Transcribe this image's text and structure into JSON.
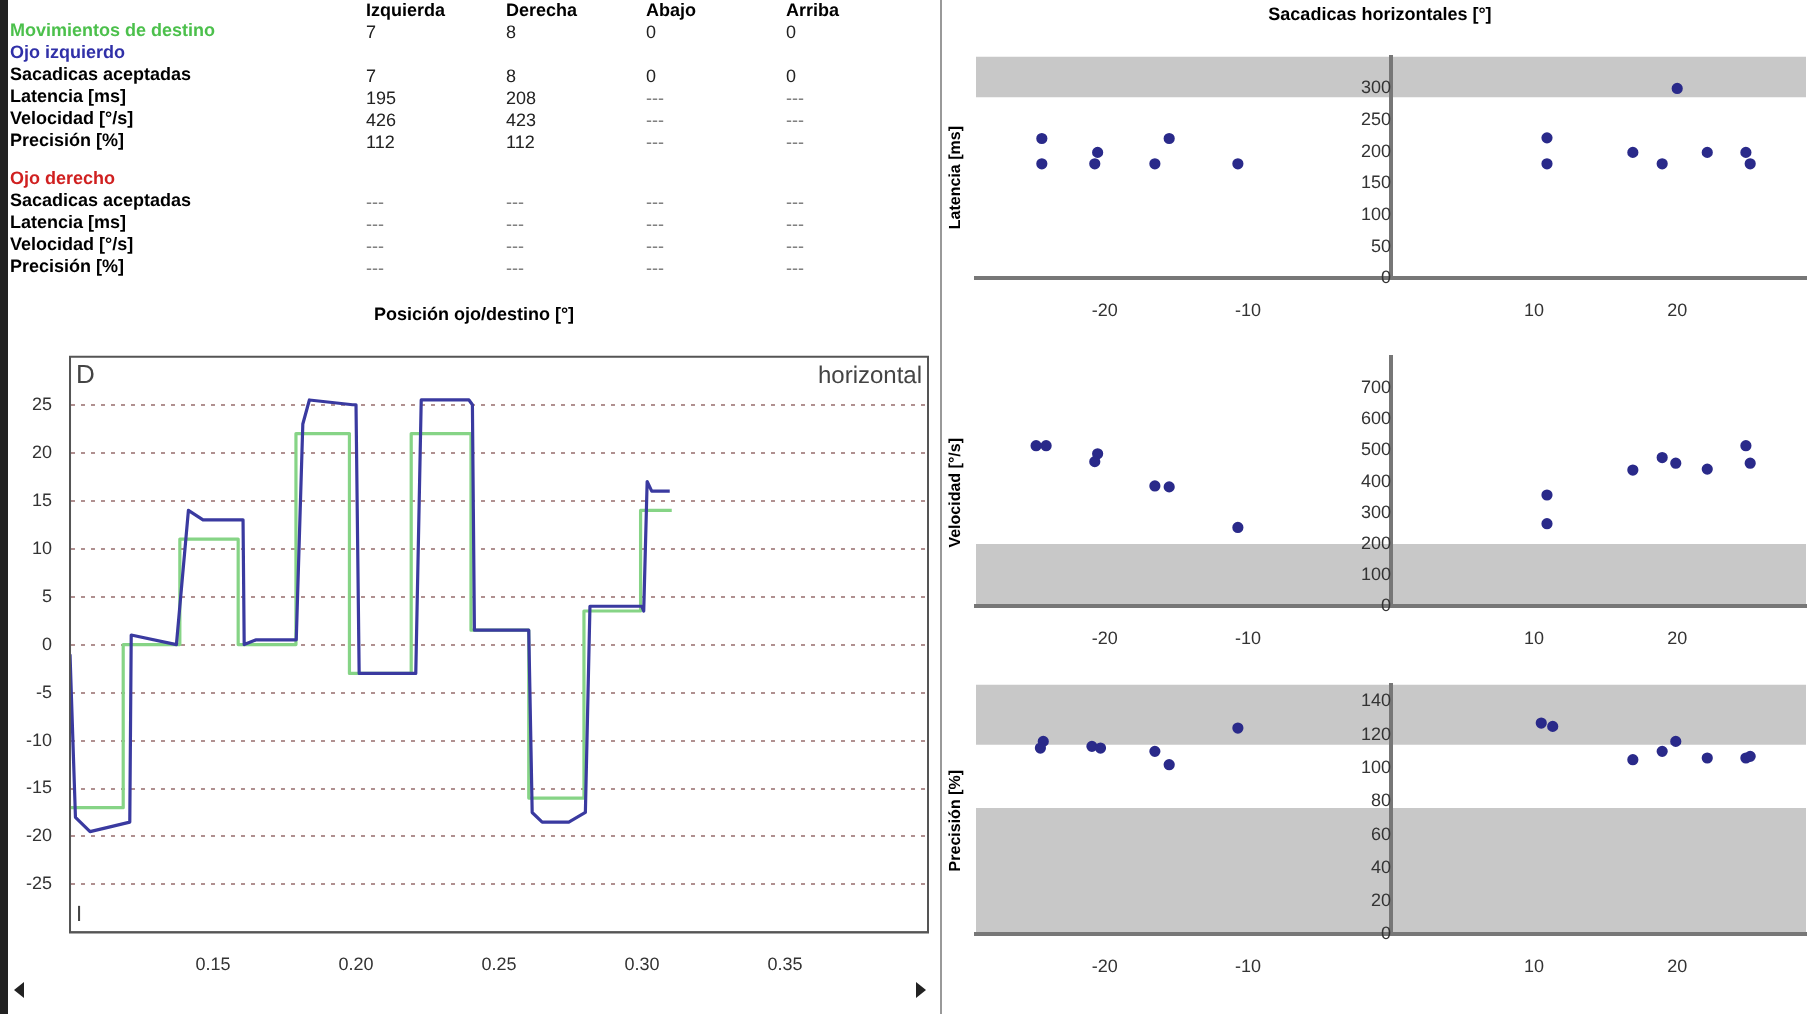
{
  "chart_data": [
    {
      "type": "other",
      "categories": [
        "Izquierda",
        "Derecha",
        "Abajo",
        "Arriba"
      ],
      "series": [
        {
          "name": "Movimientos de destino",
          "color": "#4cc04c",
          "values": [
            7,
            8,
            0,
            0
          ]
        },
        {
          "name": "Ojo izquierdo",
          "color": "#3030a8",
          "values": [
            null,
            null,
            null,
            null
          ]
        },
        {
          "name": "Sacadicas aceptadas",
          "color": "#000000",
          "values": [
            7,
            8,
            0,
            0
          ]
        },
        {
          "name": "Latencia [ms]",
          "color": "#000000",
          "values": [
            195,
            208,
            null,
            null
          ],
          "value_labels": [
            "195",
            "208",
            "---",
            "---"
          ]
        },
        {
          "name": "Velocidad [°/s]",
          "color": "#000000",
          "values": [
            426,
            423,
            null,
            null
          ],
          "value_labels": [
            "426",
            "423",
            "---",
            "---"
          ]
        },
        {
          "name": "Precisión [%]",
          "color": "#000000",
          "values": [
            112,
            112,
            null,
            null
          ],
          "value_labels": [
            "112",
            "112",
            "---",
            "---"
          ]
        },
        {
          "name": "Ojo derecho",
          "color": "#d02020",
          "values": [
            null,
            null,
            null,
            null
          ]
        },
        {
          "name": "Sacadicas aceptadas",
          "color": "#000000",
          "values": [
            null,
            null,
            null,
            null
          ],
          "value_labels": [
            "---",
            "---",
            "---",
            "---"
          ]
        },
        {
          "name": "Latencia [ms]",
          "color": "#000000",
          "values": [
            null,
            null,
            null,
            null
          ],
          "value_labels": [
            "---",
            "---",
            "---",
            "---"
          ]
        },
        {
          "name": "Velocidad [°/s]",
          "color": "#000000",
          "values": [
            null,
            null,
            null,
            null
          ],
          "value_labels": [
            "---",
            "---",
            "---",
            "---"
          ]
        },
        {
          "name": "Precisión [%]",
          "color": "#000000",
          "values": [
            null,
            null,
            null,
            null
          ],
          "value_labels": [
            "---",
            "---",
            "---",
            "---"
          ]
        }
      ],
      "data_labels": true
    },
    {
      "type": "line",
      "title": "Posición ojo/destino [°]",
      "annotations": [
        "D",
        "horizontal",
        "I"
      ],
      "xlim": [
        0.1,
        0.4
      ],
      "xticks": [
        {
          "value": 0.15,
          "label": "0.15"
        },
        {
          "value": 0.2,
          "label": "0.20"
        },
        {
          "value": 0.25,
          "label": "0.25"
        },
        {
          "value": 0.3,
          "label": "0.30"
        },
        {
          "value": 0.35,
          "label": "0.35"
        }
      ],
      "ylim": [
        -30,
        30
      ],
      "yticks": [
        -25,
        -20,
        -15,
        -10,
        -5,
        0,
        5,
        10,
        15,
        20,
        25
      ],
      "grid": "y",
      "legend": false,
      "marker": "none",
      "series": [
        {
          "color": "#86d486",
          "x": [
            0.1,
            0.1186,
            0.1186,
            0.1384,
            0.1384,
            0.1588,
            0.1588,
            0.179,
            0.179,
            0.1977,
            0.1977,
            0.2193,
            0.2193,
            0.2402,
            0.2402,
            0.2604,
            0.2604,
            0.2797,
            0.2797,
            0.2995,
            0.2995,
            0.3104
          ],
          "values": [
            -17,
            -17,
            0,
            0,
            11,
            11,
            0,
            0,
            22,
            22,
            -3,
            -3,
            22,
            22,
            1.5,
            1.5,
            -16,
            -16,
            3.5,
            3.5,
            14,
            14
          ]
        },
        {
          "color": "#3a3aa0",
          "x": [
            0.1,
            0.1019,
            0.107,
            0.114,
            0.1209,
            0.1214,
            0.1372,
            0.1414,
            0.1465,
            0.1605,
            0.1609,
            0.1651,
            0.1791,
            0.1814,
            0.1837,
            0.1988,
            0.2,
            0.2011,
            0.2209,
            0.2228,
            0.2395,
            0.2407,
            0.2414,
            0.2604,
            0.2616,
            0.2651,
            0.2744,
            0.2802,
            0.2818,
            0.2999,
            0.3006,
            0.3018,
            0.3034,
            0.3097
          ],
          "values": [
            -1,
            -18,
            -19.5,
            -19,
            -18.5,
            1,
            0,
            14,
            13,
            13,
            0,
            0.5,
            0.5,
            23,
            25.5,
            25,
            25,
            -3,
            -3,
            25.5,
            25.5,
            25,
            1.5,
            1.5,
            -17.5,
            -18.5,
            -18.5,
            -17.5,
            4,
            4,
            3.5,
            17,
            16,
            16
          ]
        }
      ]
    },
    {
      "type": "scatter",
      "title": "Sacadicas horizontales [°]",
      "ylabel": "Latencia [ms]",
      "xlim": [
        -29,
        29
      ],
      "xticks": [
        -20,
        -10,
        10,
        20
      ],
      "ylim": [
        0,
        350
      ],
      "yticks": [
        0,
        50,
        100,
        150,
        200,
        250,
        300
      ],
      "legend": false,
      "marker": "circle",
      "bands": [
        {
          "axis": "y",
          "from": 286,
          "to": 350,
          "color": "#c8c8c8"
        }
      ],
      "x": [
        -24.4,
        -24.4,
        -20.5,
        -20.7,
        -16.5,
        -15.5,
        -10.7,
        10.9,
        10.9,
        20,
        16.9,
        18.95,
        22.1,
        24.8,
        25.1
      ],
      "values": [
        221,
        181,
        199,
        181,
        181,
        221,
        181,
        222,
        181,
        300,
        199,
        181,
        199,
        199,
        181
      ],
      "color": "#2a2a8a"
    },
    {
      "type": "scatter",
      "ylabel": "Velocidad [°/s]",
      "xlim": [
        -29,
        29
      ],
      "xticks": [
        -20,
        -10,
        10,
        20
      ],
      "ylim": [
        0,
        800
      ],
      "yticks": [
        0,
        100,
        200,
        300,
        400,
        500,
        600,
        700
      ],
      "legend": false,
      "marker": "circle",
      "bands": [
        {
          "axis": "y",
          "from": 0,
          "to": 200,
          "color": "#c8c8c8"
        }
      ],
      "x": [
        -24.8,
        -24.1,
        -20.5,
        -20.7,
        -16.5,
        -15.5,
        -10.7,
        10.9,
        10.9,
        16.9,
        18.95,
        19.9,
        22.1,
        24.8,
        25.1
      ],
      "values": [
        515,
        515,
        489,
        464,
        386,
        383,
        253,
        357,
        265,
        437,
        477,
        459,
        440,
        515,
        459
      ],
      "color": "#2a2a8a"
    },
    {
      "type": "scatter",
      "ylabel": "Precisión [%]",
      "xlim": [
        -29,
        29
      ],
      "xticks": [
        -20,
        -10,
        10,
        20
      ],
      "ylim": [
        0,
        150
      ],
      "yticks": [
        0,
        20,
        40,
        60,
        80,
        100,
        120,
        140
      ],
      "legend": false,
      "marker": "circle",
      "bands": [
        {
          "axis": "y",
          "from": 0,
          "to": 76,
          "color": "#c8c8c8"
        },
        {
          "axis": "y",
          "from": 114,
          "to": 150,
          "color": "#c8c8c8"
        }
      ],
      "x": [
        -24.3,
        -24.5,
        -20.9,
        -20.3,
        -16.5,
        -15.5,
        -10.7,
        10.5,
        11.3,
        16.9,
        18.95,
        19.9,
        22.1,
        24.8,
        25.1
      ],
      "values": [
        116,
        112,
        113,
        112,
        110,
        102,
        124,
        127,
        125,
        105,
        110,
        116,
        106,
        106,
        107
      ],
      "color": "#2a2a8a"
    }
  ]
}
